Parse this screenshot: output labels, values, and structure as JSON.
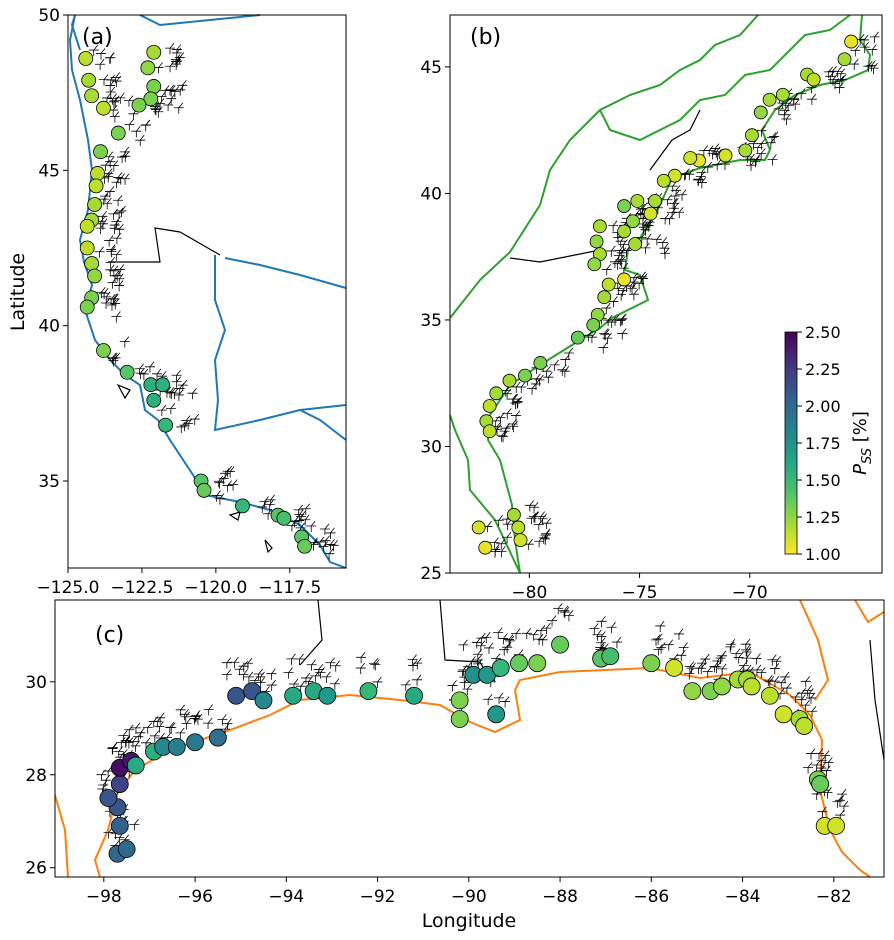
{
  "chart_data": [
    {
      "type": "scatter",
      "panel_label": "(a)",
      "xlabel": "",
      "ylabel": "Latitude",
      "xlim": [
        -125.0,
        -115.6
      ],
      "ylim": [
        32.2,
        50.0
      ],
      "xticks": [
        -125.0,
        -122.5,
        -120.0,
        -117.5
      ],
      "xtick_labels": [
        "−125.0",
        "−122.5",
        "−120.0",
        "−117.5"
      ],
      "yticks": [
        35,
        40,
        45,
        50
      ],
      "ytick_labels": [
        "35",
        "40",
        "45",
        "50"
      ],
      "coast_color": "#1f77b4",
      "points": [
        [
          -124.4,
          48.6,
          1.15
        ],
        [
          -122.1,
          48.8,
          1.2
        ],
        [
          -122.3,
          48.3,
          1.25
        ],
        [
          -122.1,
          47.7,
          1.3
        ],
        [
          -122.2,
          47.3,
          1.3
        ],
        [
          -122.6,
          47.1,
          1.3
        ],
        [
          -124.3,
          47.9,
          1.2
        ],
        [
          -124.2,
          47.4,
          1.2
        ],
        [
          -123.8,
          47.0,
          1.15
        ],
        [
          -123.3,
          46.2,
          1.3
        ],
        [
          -123.9,
          45.6,
          1.3
        ],
        [
          -124.0,
          44.9,
          1.15
        ],
        [
          -124.05,
          44.5,
          1.15
        ],
        [
          -124.1,
          43.9,
          1.2
        ],
        [
          -124.2,
          43.4,
          1.2
        ],
        [
          -124.35,
          43.2,
          1.15
        ],
        [
          -124.35,
          42.5,
          1.15
        ],
        [
          -124.2,
          42.0,
          1.2
        ],
        [
          -124.1,
          41.6,
          1.25
        ],
        [
          -124.2,
          40.9,
          1.3
        ],
        [
          -124.35,
          40.6,
          1.3
        ],
        [
          -123.8,
          39.2,
          1.3
        ],
        [
          -123.0,
          38.5,
          1.4
        ],
        [
          -122.2,
          38.1,
          1.55
        ],
        [
          -121.8,
          38.1,
          1.55
        ],
        [
          -122.1,
          37.6,
          1.55
        ],
        [
          -121.7,
          36.8,
          1.5
        ],
        [
          -120.5,
          35.0,
          1.4
        ],
        [
          -120.4,
          34.7,
          1.35
        ],
        [
          -119.1,
          34.2,
          1.5
        ],
        [
          -117.9,
          33.9,
          1.4
        ],
        [
          -117.7,
          33.8,
          1.45
        ],
        [
          -117.1,
          33.2,
          1.4
        ],
        [
          -117.0,
          32.9,
          1.35
        ]
      ]
    },
    {
      "type": "scatter",
      "panel_label": "(b)",
      "xlabel": "",
      "ylabel": "",
      "xlim": [
        -83.6,
        -64.0
      ],
      "ylim": [
        25.0,
        47.05
      ],
      "xticks": [
        -80,
        -75,
        -70
      ],
      "xtick_labels": [
        "−80",
        "−75",
        "−70"
      ],
      "yticks": [
        25,
        30,
        35,
        40,
        45
      ],
      "ytick_labels": [
        "25",
        "30",
        "35",
        "40",
        "45"
      ],
      "coast_color": "#2ca02c",
      "points": [
        [
          -65.4,
          46.0,
          1.05
        ],
        [
          -67.4,
          44.7,
          1.2
        ],
        [
          -67.1,
          44.5,
          1.15
        ],
        [
          -65.7,
          45.3,
          1.2
        ],
        [
          -68.5,
          43.9,
          1.2
        ],
        [
          -69.1,
          43.7,
          1.2
        ],
        [
          -69.5,
          43.2,
          1.25
        ],
        [
          -69.9,
          42.3,
          1.2
        ],
        [
          -70.2,
          41.7,
          1.2
        ],
        [
          -71.1,
          41.5,
          1.1
        ],
        [
          -72.3,
          41.3,
          1.05
        ],
        [
          -72.7,
          41.4,
          1.1
        ],
        [
          -73.4,
          40.7,
          1.1
        ],
        [
          -73.9,
          40.5,
          1.15
        ],
        [
          -74.3,
          39.7,
          1.2
        ],
        [
          -74.5,
          39.2,
          1.1
        ],
        [
          -75.1,
          39.7,
          1.2
        ],
        [
          -75.7,
          39.5,
          1.3
        ],
        [
          -75.3,
          38.9,
          1.25
        ],
        [
          -75.7,
          38.5,
          1.2
        ],
        [
          -75.2,
          38.0,
          1.2
        ],
        [
          -76.8,
          38.7,
          1.2
        ],
        [
          -76.95,
          38.1,
          1.25
        ],
        [
          -76.8,
          37.6,
          1.2
        ],
        [
          -77.05,
          37.2,
          1.25
        ],
        [
          -76.4,
          36.4,
          1.15
        ],
        [
          -75.7,
          36.6,
          1.05
        ],
        [
          -76.6,
          35.9,
          1.2
        ],
        [
          -76.9,
          35.2,
          1.25
        ],
        [
          -77.1,
          34.8,
          1.3
        ],
        [
          -77.8,
          34.3,
          1.35
        ],
        [
          -79.5,
          33.3,
          1.3
        ],
        [
          -80.2,
          32.8,
          1.3
        ],
        [
          -80.9,
          32.6,
          1.2
        ],
        [
          -81.5,
          32.1,
          1.2
        ],
        [
          -81.8,
          31.6,
          1.15
        ],
        [
          -81.95,
          31.0,
          1.2
        ],
        [
          -81.8,
          30.6,
          1.15
        ],
        [
          -80.7,
          27.3,
          1.2
        ],
        [
          -80.5,
          26.8,
          1.15
        ],
        [
          -80.4,
          26.3,
          1.1
        ],
        [
          -82.3,
          26.8,
          1.1
        ],
        [
          -82.0,
          26.0,
          1.05
        ]
      ]
    },
    {
      "type": "scatter",
      "panel_label": "(c)",
      "xlabel": "Longitude",
      "ylabel": "",
      "xlim": [
        -99.07,
        -80.9
      ],
      "ylim": [
        25.8,
        31.76
      ],
      "xticks": [
        -98,
        -96,
        -94,
        -92,
        -90,
        -88,
        -86,
        -84,
        -82
      ],
      "xtick_labels": [
        "−98",
        "−96",
        "−94",
        "−92",
        "−90",
        "−88",
        "−86",
        "−84",
        "−82"
      ],
      "yticks": [
        26,
        28,
        30
      ],
      "ytick_labels": [
        "26",
        "28",
        "30"
      ],
      "coast_color": "#ff7f0e",
      "points": [
        [
          -97.7,
          26.3,
          2.0
        ],
        [
          -97.5,
          26.4,
          2.0
        ],
        [
          -97.65,
          26.9,
          2.05
        ],
        [
          -97.7,
          27.3,
          2.1
        ],
        [
          -97.9,
          27.5,
          2.1
        ],
        [
          -97.65,
          27.8,
          2.2
        ],
        [
          -97.65,
          28.15,
          2.45
        ],
        [
          -97.4,
          28.3,
          2.4
        ],
        [
          -97.3,
          28.2,
          1.6
        ],
        [
          -96.9,
          28.5,
          1.55
        ],
        [
          -96.7,
          28.6,
          1.8
        ],
        [
          -96.4,
          28.6,
          1.85
        ],
        [
          -96.0,
          28.7,
          1.9
        ],
        [
          -95.5,
          28.8,
          1.95
        ],
        [
          -95.1,
          29.7,
          2.1
        ],
        [
          -94.75,
          29.8,
          2.1
        ],
        [
          -94.5,
          29.6,
          1.8
        ],
        [
          -93.85,
          29.7,
          1.6
        ],
        [
          -93.4,
          29.8,
          1.6
        ],
        [
          -93.1,
          29.7,
          1.7
        ],
        [
          -92.2,
          29.8,
          1.5
        ],
        [
          -91.2,
          29.7,
          1.6
        ],
        [
          -90.2,
          29.6,
          1.3
        ],
        [
          -90.2,
          29.2,
          1.3
        ],
        [
          -89.9,
          30.15,
          1.75
        ],
        [
          -89.6,
          30.15,
          1.7
        ],
        [
          -89.4,
          29.3,
          1.7
        ],
        [
          -89.3,
          30.3,
          1.5
        ],
        [
          -88.9,
          30.4,
          1.35
        ],
        [
          -88.5,
          30.4,
          1.3
        ],
        [
          -88.0,
          30.8,
          1.35
        ],
        [
          -87.1,
          30.5,
          1.4
        ],
        [
          -86.9,
          30.55,
          1.45
        ],
        [
          -86.0,
          30.4,
          1.3
        ],
        [
          -85.5,
          30.3,
          1.1
        ],
        [
          -85.1,
          29.8,
          1.25
        ],
        [
          -84.7,
          29.8,
          1.3
        ],
        [
          -84.45,
          29.9,
          1.25
        ],
        [
          -84.1,
          30.05,
          1.2
        ],
        [
          -83.9,
          30.05,
          1.2
        ],
        [
          -83.8,
          29.9,
          1.15
        ],
        [
          -83.4,
          29.7,
          1.15
        ],
        [
          -83.1,
          29.3,
          1.1
        ],
        [
          -82.75,
          29.2,
          1.2
        ],
        [
          -82.65,
          29.05,
          1.15
        ],
        [
          -82.35,
          27.9,
          1.3
        ],
        [
          -82.3,
          27.8,
          1.35
        ],
        [
          -82.2,
          26.9,
          1.1
        ],
        [
          -81.95,
          26.9,
          1.1
        ]
      ]
    }
  ],
  "colorbar": {
    "label_main": "P",
    "label_sub": "SS",
    "label_unit": " [%]",
    "range": [
      1.0,
      2.5
    ],
    "ticks": [
      1.0,
      1.25,
      1.5,
      1.75,
      2.0,
      2.25,
      2.5
    ],
    "tick_labels": [
      "1.00",
      "1.25",
      "1.50",
      "1.75",
      "2.00",
      "2.25",
      "2.50"
    ],
    "colormap": "viridis_r"
  }
}
